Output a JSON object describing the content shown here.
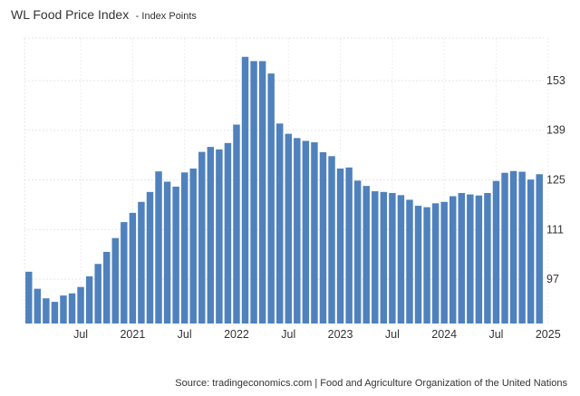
{
  "chart_data": {
    "type": "bar",
    "title": "WL Food Price Index",
    "subtitle": "- Index Points",
    "xlabel": "",
    "ylabel": "",
    "grid": true,
    "color": "#4f81bd",
    "ylim": [
      84.5,
      165
    ],
    "yticks": [
      97,
      111,
      125,
      139,
      153
    ],
    "x_tick_labels": [
      {
        "label": "Jul",
        "index": 6
      },
      {
        "label": "2021",
        "index": 12
      },
      {
        "label": "Jul",
        "index": 18
      },
      {
        "label": "2022",
        "index": 24
      },
      {
        "label": "Jul",
        "index": 30
      },
      {
        "label": "2023",
        "index": 36
      },
      {
        "label": "Jul",
        "index": 42
      },
      {
        "label": "2024",
        "index": 48
      },
      {
        "label": "Jul",
        "index": 54
      },
      {
        "label": "2025",
        "index": 60
      }
    ],
    "values": [
      99.1,
      94.3,
      91.6,
      90.6,
      92.4,
      93.0,
      94.8,
      97.8,
      101.3,
      104.7,
      108.6,
      113.1,
      115.7,
      118.8,
      121.6,
      127.4,
      124.5,
      123.1,
      127.1,
      128.2,
      132.9,
      134.3,
      133.6,
      135.4,
      140.6,
      159.7,
      158.5,
      158.5,
      155.0,
      140.9,
      138.0,
      136.8,
      136.0,
      135.6,
      132.8,
      131.7,
      128.2,
      128.5,
      124.8,
      123.3,
      121.8,
      121.6,
      121.3,
      120.7,
      119.4,
      117.7,
      117.3,
      118.4,
      118.8,
      120.4,
      121.3,
      120.9,
      120.6,
      121.3,
      124.7,
      127.0,
      127.5,
      127.3,
      125.1,
      126.6
    ]
  },
  "source_text": "Source: tradingeconomics.com | Food and Agriculture Organization of the United Nations"
}
